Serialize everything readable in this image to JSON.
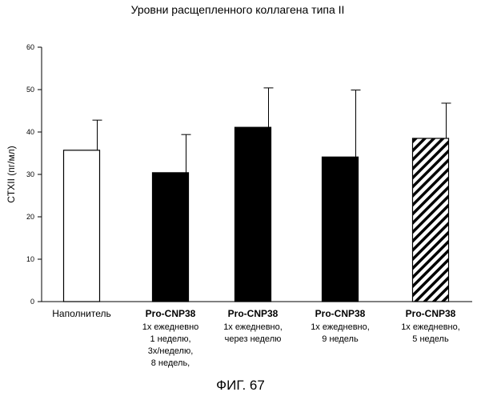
{
  "chart_data": {
    "type": "bar",
    "title": "Уровни расщепленного коллагена типа II",
    "ylabel": "CTXII (пг/мл)",
    "xlabel": "",
    "ylim": [
      0,
      60
    ],
    "yticks": [
      0,
      10,
      20,
      30,
      40,
      50,
      60
    ],
    "categories": [
      {
        "name": "",
        "lines": [
          "Наполнитель"
        ],
        "fill": "white"
      },
      {
        "name": "Pro-CNP38",
        "lines": [
          "1х ежедневно",
          "1 неделю,",
          "3х/неделю,",
          "8 недель,"
        ],
        "fill": "black"
      },
      {
        "name": "Pro-CNP38",
        "lines": [
          "1х ежедневно,",
          "через неделю"
        ],
        "fill": "black"
      },
      {
        "name": "Pro-CNP38",
        "lines": [
          "1х ежедневно,",
          "9 недель"
        ],
        "fill": "black"
      },
      {
        "name": "Pro-CNP38",
        "lines": [
          "1х ежедневно,",
          "5 недель"
        ],
        "fill": "hatched"
      }
    ],
    "values": [
      35.7,
      30.4,
      41.1,
      34.1,
      38.5
    ],
    "errors": [
      7.1,
      9.0,
      9.3,
      15.8,
      8.3
    ]
  },
  "figure_caption": "ФИГ. 67"
}
